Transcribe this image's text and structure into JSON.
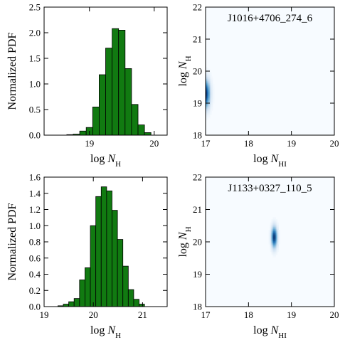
{
  "chart_data": [
    {
      "type": "bar",
      "name": "hist-top",
      "ylabel": "Normalized PDF",
      "xlabel_base": "log ",
      "xlabel_var": "N",
      "xlabel_sub": "H",
      "xlim": [
        18.3,
        20.2
      ],
      "ylim": [
        0,
        2.5
      ],
      "xticks": [
        19,
        20
      ],
      "xtick_labels": [
        "19",
        "20"
      ],
      "yticks": [
        0,
        0.5,
        1.0,
        1.5,
        2.0,
        2.5
      ],
      "ytick_labels": [
        "0.0",
        "0.5",
        "1.0",
        "1.5",
        "2.0",
        "2.5"
      ],
      "bar_color": "#117a11",
      "bin_edges": [
        18.65,
        18.75,
        18.85,
        18.95,
        19.05,
        19.15,
        19.25,
        19.35,
        19.45,
        19.55,
        19.65,
        19.75,
        19.85,
        19.95
      ],
      "values": [
        0.01,
        0.02,
        0.08,
        0.15,
        0.55,
        1.18,
        1.7,
        2.08,
        2.05,
        1.3,
        0.6,
        0.2,
        0.05
      ]
    },
    {
      "type": "heatmap",
      "name": "density-top",
      "title": "J1016+4706_274_6",
      "xlabel_base": "log ",
      "xlabel_var": "N",
      "xlabel_sub": "HI",
      "ylabel_base": "log ",
      "ylabel_var": "N",
      "ylabel_sub": "H",
      "xlim": [
        17,
        20
      ],
      "ylim": [
        18,
        22
      ],
      "xticks": [
        17,
        18,
        19,
        20
      ],
      "xtick_labels": [
        "17",
        "18",
        "19",
        "20"
      ],
      "yticks": [
        18,
        19,
        20,
        21,
        22
      ],
      "ytick_labels": [
        "18",
        "19",
        "20",
        "21",
        "22"
      ],
      "colormap": "Blues",
      "peak": {
        "x": 17.0,
        "y": 19.3,
        "sigma_x": 0.07,
        "sigma_y": 0.3
      }
    },
    {
      "type": "bar",
      "name": "hist-bottom",
      "ylabel": "Normalized PDF",
      "xlabel_base": "log ",
      "xlabel_var": "N",
      "xlabel_sub": "H",
      "xlim": [
        19.0,
        21.5
      ],
      "ylim": [
        0,
        1.6
      ],
      "xticks": [
        19,
        20,
        21
      ],
      "xtick_labels": [
        "19",
        "20",
        "21"
      ],
      "yticks": [
        0,
        0.2,
        0.4,
        0.6,
        0.8,
        1.0,
        1.2,
        1.4,
        1.6
      ],
      "ytick_labels": [
        "0.0",
        "0.2",
        "0.4",
        "0.6",
        "0.8",
        "1.0",
        "1.2",
        "1.4",
        "1.6"
      ],
      "bar_color": "#117a11",
      "bin_edges": [
        19.28,
        19.39,
        19.5,
        19.61,
        19.72,
        19.83,
        19.94,
        20.05,
        20.16,
        20.27,
        20.38,
        20.49,
        20.6,
        20.71,
        20.82,
        20.93,
        21.04
      ],
      "values": [
        0.01,
        0.03,
        0.06,
        0.1,
        0.33,
        0.48,
        1.0,
        1.36,
        1.48,
        1.43,
        1.19,
        0.83,
        0.5,
        0.21,
        0.09,
        0.03
      ]
    },
    {
      "type": "heatmap",
      "name": "density-bottom",
      "title": "J1133+0327_110_5",
      "xlabel_base": "log ",
      "xlabel_var": "N",
      "xlabel_sub": "HI",
      "ylabel_base": "log ",
      "ylabel_var": "N",
      "ylabel_sub": "H",
      "xlim": [
        17,
        20
      ],
      "ylim": [
        18,
        22
      ],
      "xticks": [
        17,
        18,
        19,
        20
      ],
      "xtick_labels": [
        "17",
        "18",
        "19",
        "20"
      ],
      "yticks": [
        18,
        19,
        20,
        21,
        22
      ],
      "ytick_labels": [
        "18",
        "19",
        "20",
        "21",
        "22"
      ],
      "colormap": "Blues",
      "peak": {
        "x": 18.6,
        "y": 20.15,
        "sigma_x": 0.045,
        "sigma_y": 0.22
      }
    }
  ]
}
